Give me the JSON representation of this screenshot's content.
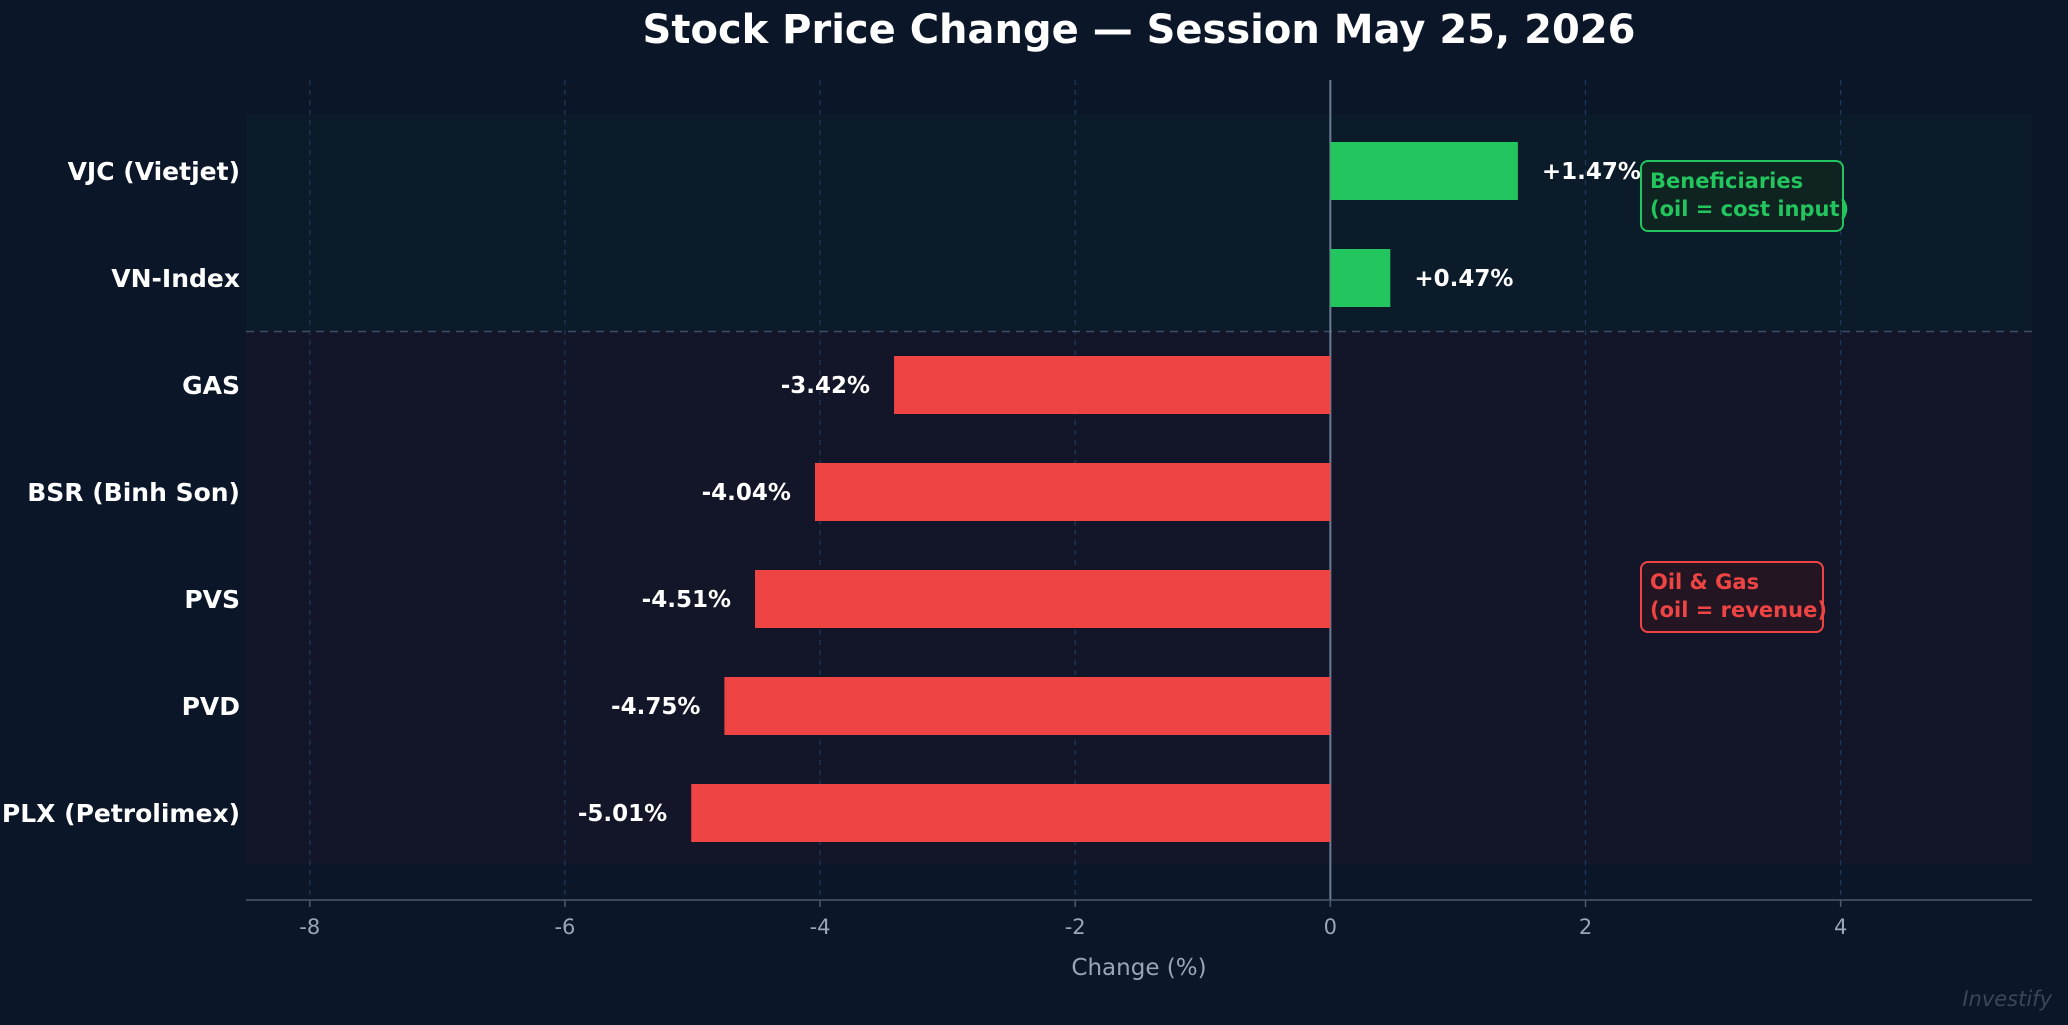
{
  "chart_data": {
    "type": "bar",
    "orientation": "horizontal",
    "title": "Stock Price Change — Session May 25, 2026",
    "xlabel": "Change (%)",
    "xlim": [
      -8.5,
      5.5
    ],
    "xticks": [
      -8,
      -6,
      -4,
      -2,
      0,
      2,
      4
    ],
    "grid": "vertical dashed",
    "categories": [
      "VJC (Vietjet)",
      "VN-Index",
      "GAS",
      "BSR (Binh Son)",
      "PVS",
      "PVD",
      "PLX (Petrolimex)"
    ],
    "values": [
      1.47,
      0.47,
      -3.42,
      -4.04,
      -4.51,
      -4.75,
      -5.01
    ],
    "value_labels": [
      "+1.47%",
      "+0.47%",
      "-3.42%",
      "-4.04%",
      "-4.51%",
      "-4.75%",
      "-5.01%"
    ],
    "groups": [
      {
        "label_lines": [
          "Beneficiaries",
          "(oil = cost input)"
        ],
        "color": "#22c55e",
        "members": [
          "VJC (Vietjet)",
          "VN-Index"
        ]
      },
      {
        "label_lines": [
          "Oil & Gas",
          "(oil = revenue)"
        ],
        "color": "#ef4444",
        "members": [
          "GAS",
          "BSR (Binh Son)",
          "PVS",
          "PVD",
          "PLX (Petrolimex)"
        ]
      }
    ],
    "colors": {
      "positive": "#22c55e",
      "negative": "#ef4444"
    }
  },
  "watermark": "Investify"
}
